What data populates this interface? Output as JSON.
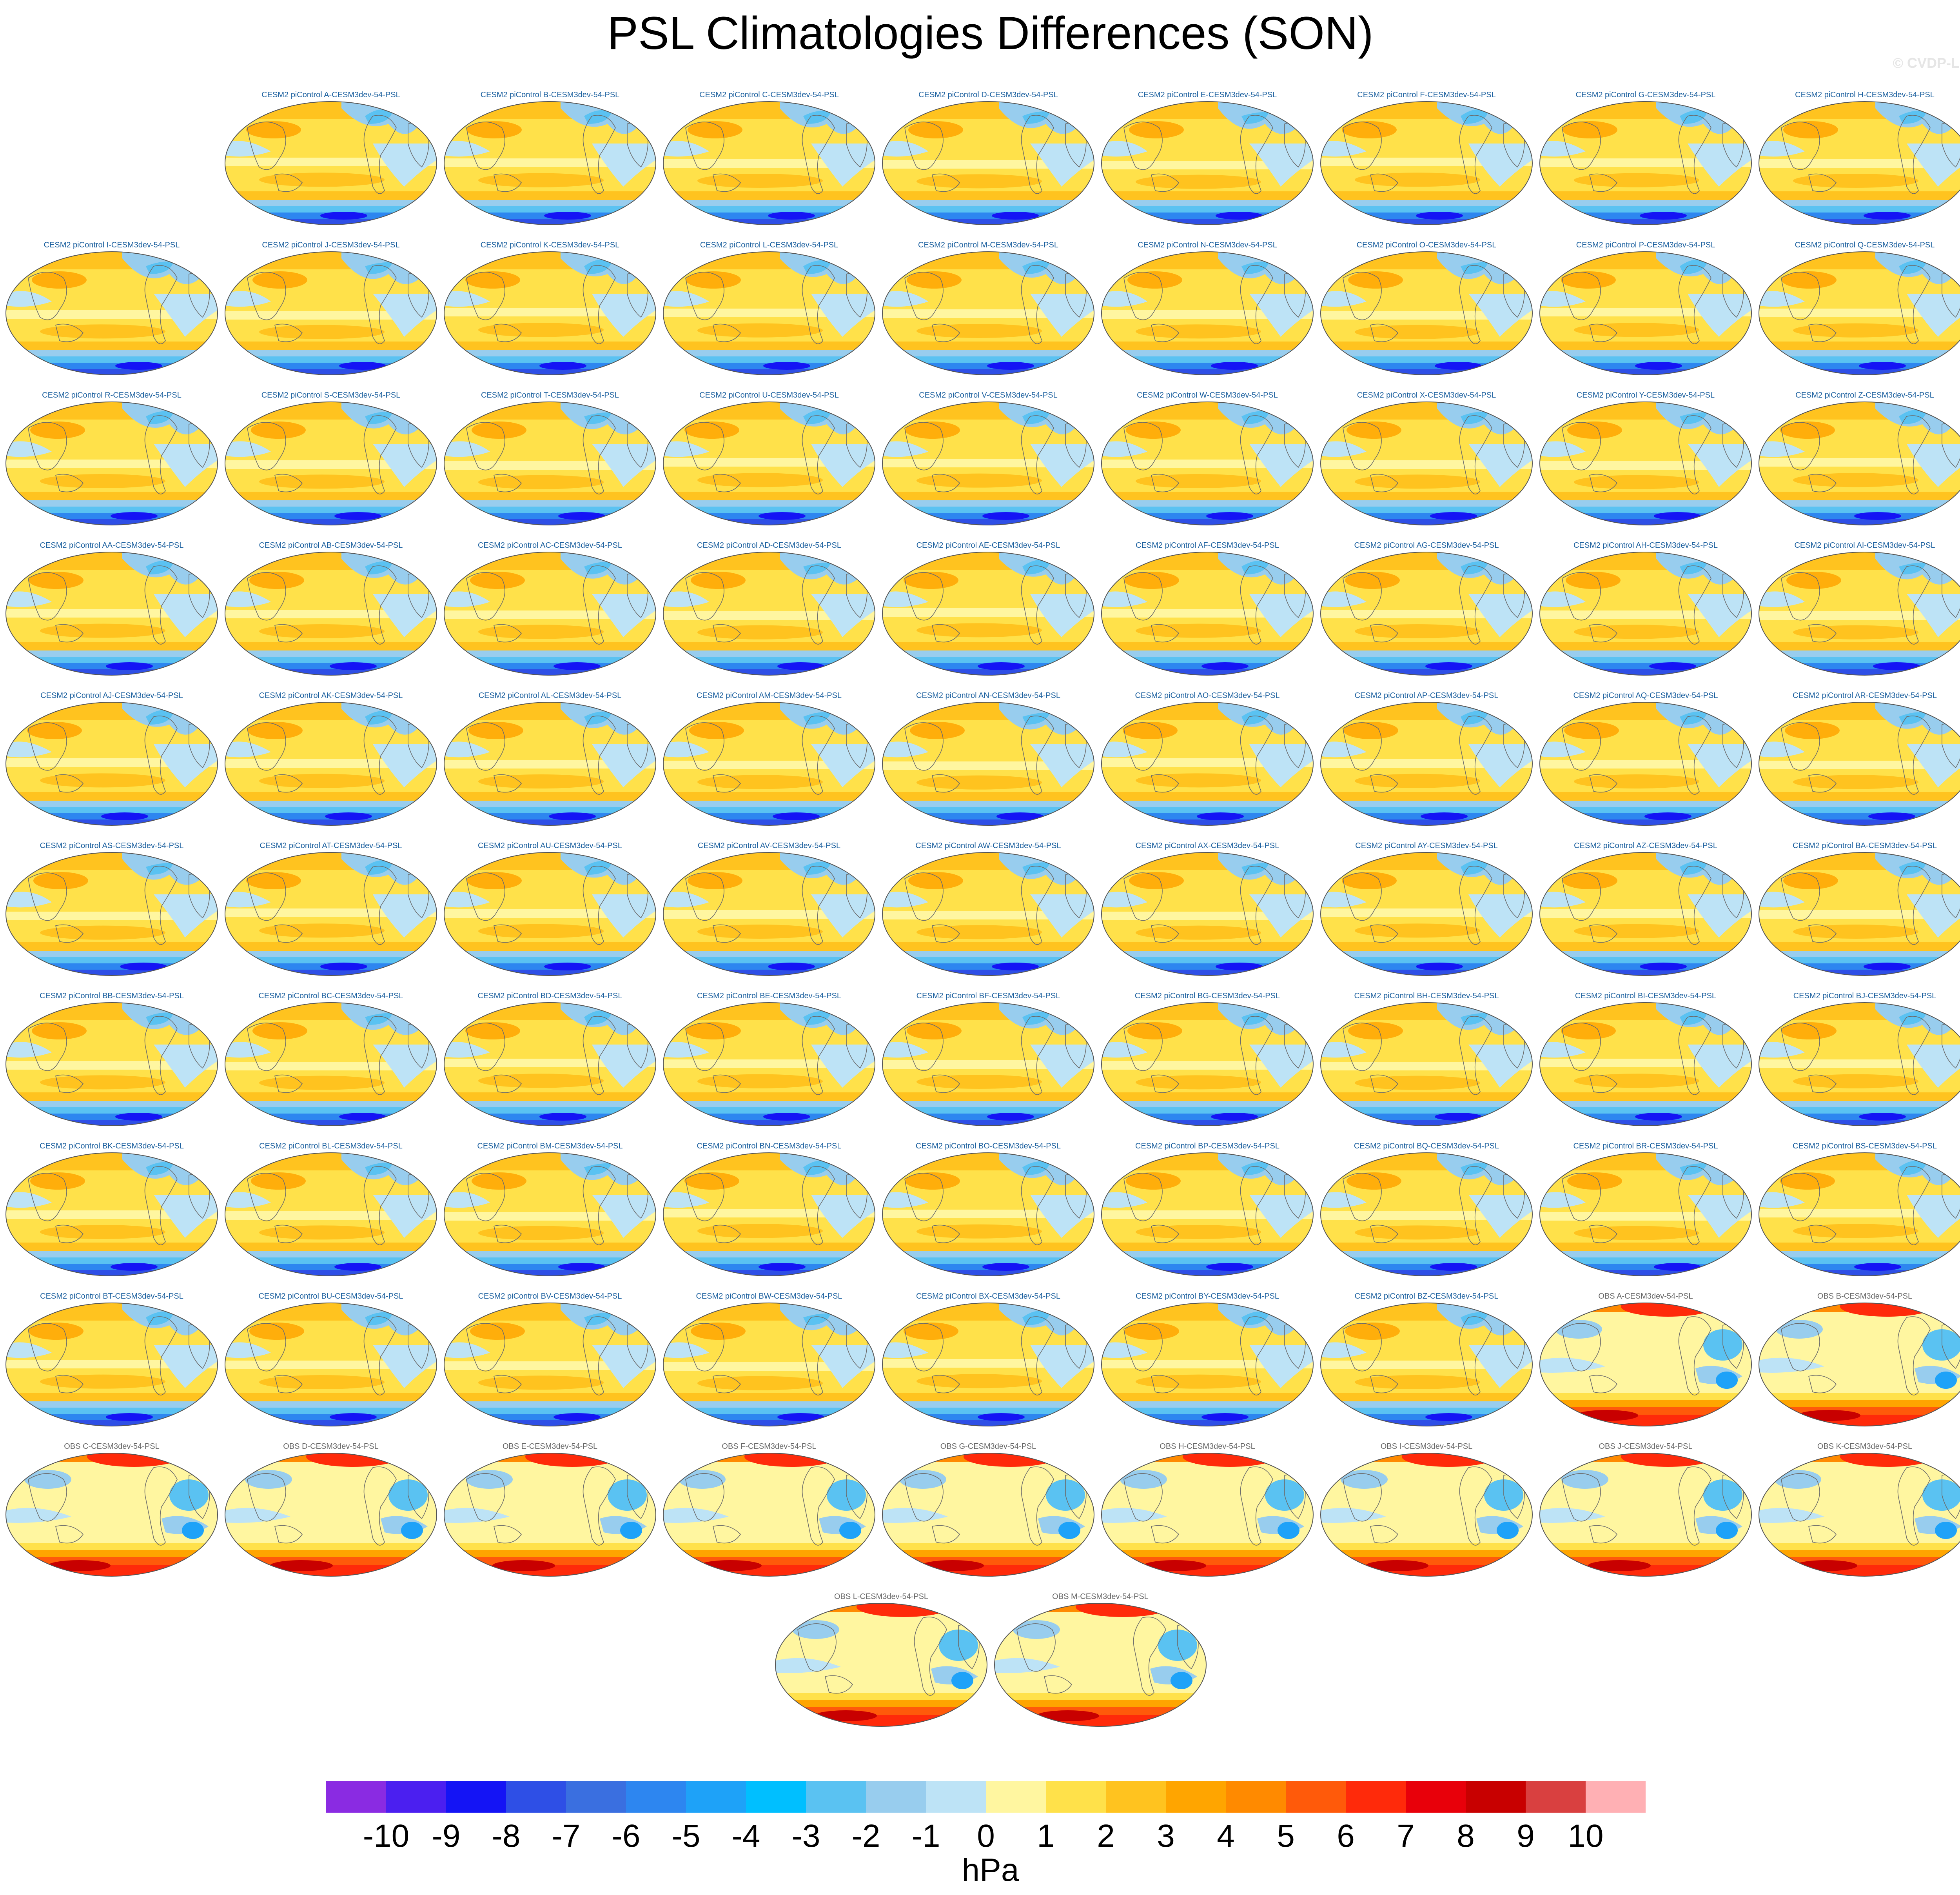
{
  "title": "PSL Climatologies Differences (SON)",
  "copyright": "© CVDP-LE",
  "colorbar": {
    "units": "hPa",
    "ticks": [
      "-10",
      "-9",
      "-8",
      "-7",
      "-6",
      "-5",
      "-4",
      "-3",
      "-2",
      "-1",
      "0",
      "1",
      "2",
      "3",
      "4",
      "5",
      "6",
      "7",
      "8",
      "9",
      "10"
    ],
    "colors": [
      "#8a2be2",
      "#4b1ff0",
      "#1414f5",
      "#2e4fe6",
      "#3a6fe0",
      "#2d86f0",
      "#1ea2f8",
      "#00bfff",
      "#5ac2f2",
      "#98cdee",
      "#bde3f6",
      "#fff6a0",
      "#ffe14a",
      "#ffc31f",
      "#ffa500",
      "#ff8a00",
      "#ff5a0a",
      "#ff2a0a",
      "#e8000a",
      "#c80000",
      "#d94040",
      "#ffb0b4"
    ]
  },
  "model_panels": [
    "CESM2 piControl A-CESM3dev-54-PSL",
    "CESM2 piControl B-CESM3dev-54-PSL",
    "CESM2 piControl C-CESM3dev-54-PSL",
    "CESM2 piControl D-CESM3dev-54-PSL",
    "CESM2 piControl E-CESM3dev-54-PSL",
    "CESM2 piControl F-CESM3dev-54-PSL",
    "CESM2 piControl G-CESM3dev-54-PSL",
    "CESM2 piControl H-CESM3dev-54-PSL",
    "CESM2 piControl I-CESM3dev-54-PSL",
    "CESM2 piControl J-CESM3dev-54-PSL",
    "CESM2 piControl K-CESM3dev-54-PSL",
    "CESM2 piControl L-CESM3dev-54-PSL",
    "CESM2 piControl M-CESM3dev-54-PSL",
    "CESM2 piControl N-CESM3dev-54-PSL",
    "CESM2 piControl O-CESM3dev-54-PSL",
    "CESM2 piControl P-CESM3dev-54-PSL",
    "CESM2 piControl Q-CESM3dev-54-PSL",
    "CESM2 piControl R-CESM3dev-54-PSL",
    "CESM2 piControl S-CESM3dev-54-PSL",
    "CESM2 piControl T-CESM3dev-54-PSL",
    "CESM2 piControl U-CESM3dev-54-PSL",
    "CESM2 piControl V-CESM3dev-54-PSL",
    "CESM2 piControl W-CESM3dev-54-PSL",
    "CESM2 piControl X-CESM3dev-54-PSL",
    "CESM2 piControl Y-CESM3dev-54-PSL",
    "CESM2 piControl Z-CESM3dev-54-PSL",
    "CESM2 piControl AA-CESM3dev-54-PSL",
    "CESM2 piControl AB-CESM3dev-54-PSL",
    "CESM2 piControl AC-CESM3dev-54-PSL",
    "CESM2 piControl AD-CESM3dev-54-PSL",
    "CESM2 piControl AE-CESM3dev-54-PSL",
    "CESM2 piControl AF-CESM3dev-54-PSL",
    "CESM2 piControl AG-CESM3dev-54-PSL",
    "CESM2 piControl AH-CESM3dev-54-PSL",
    "CESM2 piControl AI-CESM3dev-54-PSL",
    "CESM2 piControl AJ-CESM3dev-54-PSL",
    "CESM2 piControl AK-CESM3dev-54-PSL",
    "CESM2 piControl AL-CESM3dev-54-PSL",
    "CESM2 piControl AM-CESM3dev-54-PSL",
    "CESM2 piControl AN-CESM3dev-54-PSL",
    "CESM2 piControl AO-CESM3dev-54-PSL",
    "CESM2 piControl AP-CESM3dev-54-PSL",
    "CESM2 piControl AQ-CESM3dev-54-PSL",
    "CESM2 piControl AR-CESM3dev-54-PSL",
    "CESM2 piControl AS-CESM3dev-54-PSL",
    "CESM2 piControl AT-CESM3dev-54-PSL",
    "CESM2 piControl AU-CESM3dev-54-PSL",
    "CESM2 piControl AV-CESM3dev-54-PSL",
    "CESM2 piControl AW-CESM3dev-54-PSL",
    "CESM2 piControl AX-CESM3dev-54-PSL",
    "CESM2 piControl AY-CESM3dev-54-PSL",
    "CESM2 piControl AZ-CESM3dev-54-PSL",
    "CESM2 piControl BA-CESM3dev-54-PSL",
    "CESM2 piControl BB-CESM3dev-54-PSL",
    "CESM2 piControl BC-CESM3dev-54-PSL",
    "CESM2 piControl BD-CESM3dev-54-PSL",
    "CESM2 piControl BE-CESM3dev-54-PSL",
    "CESM2 piControl BF-CESM3dev-54-PSL",
    "CESM2 piControl BG-CESM3dev-54-PSL",
    "CESM2 piControl BH-CESM3dev-54-PSL",
    "CESM2 piControl BI-CESM3dev-54-PSL",
    "CESM2 piControl BJ-CESM3dev-54-PSL",
    "CESM2 piControl BK-CESM3dev-54-PSL",
    "CESM2 piControl BL-CESM3dev-54-PSL",
    "CESM2 piControl BM-CESM3dev-54-PSL",
    "CESM2 piControl BN-CESM3dev-54-PSL",
    "CESM2 piControl BO-CESM3dev-54-PSL",
    "CESM2 piControl BP-CESM3dev-54-PSL",
    "CESM2 piControl BQ-CESM3dev-54-PSL",
    "CESM2 piControl BR-CESM3dev-54-PSL",
    "CESM2 piControl BS-CESM3dev-54-PSL",
    "CESM2 piControl BT-CESM3dev-54-PSL",
    "CESM2 piControl BU-CESM3dev-54-PSL",
    "CESM2 piControl BV-CESM3dev-54-PSL",
    "CESM2 piControl BW-CESM3dev-54-PSL",
    "CESM2 piControl BX-CESM3dev-54-PSL",
    "CESM2 piControl BY-CESM3dev-54-PSL",
    "CESM2 piControl BZ-CESM3dev-54-PSL"
  ],
  "obs_panels": [
    "OBS A-CESM3dev-54-PSL",
    "OBS B-CESM3dev-54-PSL",
    "OBS C-CESM3dev-54-PSL",
    "OBS D-CESM3dev-54-PSL",
    "OBS E-CESM3dev-54-PSL",
    "OBS F-CESM3dev-54-PSL",
    "OBS G-CESM3dev-54-PSL",
    "OBS H-CESM3dev-54-PSL",
    "OBS I-CESM3dev-54-PSL",
    "OBS J-CESM3dev-54-PSL",
    "OBS K-CESM3dev-54-PSL",
    "OBS L-CESM3dev-54-PSL",
    "OBS M-CESM3dev-54-PSL"
  ]
}
